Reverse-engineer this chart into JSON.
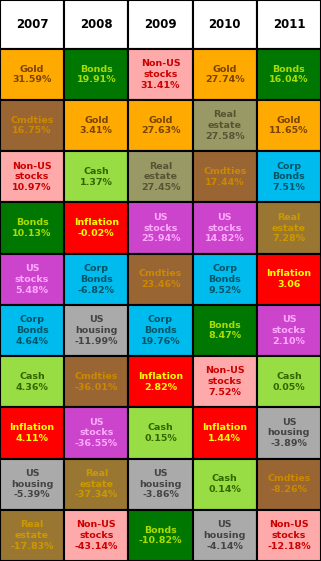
{
  "years": [
    "2007",
    "2008",
    "2009",
    "2010",
    "2011"
  ],
  "table": [
    [
      {
        "label": "Gold",
        "value": "31.59%",
        "bg": "#ffaa00",
        "fg": "#7a4400"
      },
      {
        "label": "Bonds",
        "value": "19.91%",
        "bg": "#007700",
        "fg": "#aadd00"
      },
      {
        "label": "Non-US\nstocks",
        "value": "31.41%",
        "bg": "#ffaaaa",
        "fg": "#cc0000"
      },
      {
        "label": "Gold",
        "value": "27.74%",
        "bg": "#ffaa00",
        "fg": "#7a4400"
      },
      {
        "label": "Bonds",
        "value": "16.04%",
        "bg": "#007700",
        "fg": "#aadd00"
      }
    ],
    [
      {
        "label": "Cmdties",
        "value": "16.75%",
        "bg": "#996633",
        "fg": "#cc8800"
      },
      {
        "label": "Gold",
        "value": "3.41%",
        "bg": "#ffaa00",
        "fg": "#7a4400"
      },
      {
        "label": "Gold",
        "value": "27.63%",
        "bg": "#ffaa00",
        "fg": "#7a4400"
      },
      {
        "label": "Real\nestate",
        "value": "27.58%",
        "bg": "#999966",
        "fg": "#555533"
      },
      {
        "label": "Gold",
        "value": "11.65%",
        "bg": "#ffaa00",
        "fg": "#7a4400"
      }
    ],
    [
      {
        "label": "Non-US\nstocks",
        "value": "10.97%",
        "bg": "#ffaaaa",
        "fg": "#cc0000"
      },
      {
        "label": "Cash",
        "value": "1.37%",
        "bg": "#99dd44",
        "fg": "#336600"
      },
      {
        "label": "Real\nestate",
        "value": "27.45%",
        "bg": "#999966",
        "fg": "#555533"
      },
      {
        "label": "Cmdties",
        "value": "17.44%",
        "bg": "#996633",
        "fg": "#cc8800"
      },
      {
        "label": "Corp\nBonds",
        "value": "7.51%",
        "bg": "#00bbee",
        "fg": "#005566"
      }
    ],
    [
      {
        "label": "Bonds",
        "value": "10.13%",
        "bg": "#007700",
        "fg": "#aadd00"
      },
      {
        "label": "Inflation",
        "value": "-0.02%",
        "bg": "#ff0000",
        "fg": "#ffff00"
      },
      {
        "label": "US\nstocks",
        "value": "25.94%",
        "bg": "#cc44cc",
        "fg": "#ffaaff"
      },
      {
        "label": "US\nstocks",
        "value": "14.82%",
        "bg": "#cc44cc",
        "fg": "#ffaaff"
      },
      {
        "label": "Real\nestate",
        "value": "7.28%",
        "bg": "#997733",
        "fg": "#cc9900"
      }
    ],
    [
      {
        "label": "US\nstocks",
        "value": "5.48%",
        "bg": "#cc44cc",
        "fg": "#ffaaff"
      },
      {
        "label": "Corp\nBonds",
        "value": "-6.82%",
        "bg": "#00bbee",
        "fg": "#005566"
      },
      {
        "label": "Cmdties",
        "value": "23.46%",
        "bg": "#996633",
        "fg": "#cc8800"
      },
      {
        "label": "Corp\nBonds",
        "value": "9.52%",
        "bg": "#00bbee",
        "fg": "#005566"
      },
      {
        "label": "Inflation",
        "value": "3.06",
        "bg": "#ff0000",
        "fg": "#ffff00"
      }
    ],
    [
      {
        "label": "Corp\nBonds",
        "value": "4.64%",
        "bg": "#00bbee",
        "fg": "#005566"
      },
      {
        "label": "US\nhousing",
        "value": "-11.99%",
        "bg": "#aaaaaa",
        "fg": "#444444"
      },
      {
        "label": "Corp\nBonds",
        "value": "19.76%",
        "bg": "#00bbee",
        "fg": "#005566"
      },
      {
        "label": "Bonds",
        "value": "8.47%",
        "bg": "#007700",
        "fg": "#aadd00"
      },
      {
        "label": "US\nstocks",
        "value": "2.10%",
        "bg": "#cc44cc",
        "fg": "#ffaaff"
      }
    ],
    [
      {
        "label": "Cash",
        "value": "4.36%",
        "bg": "#99dd44",
        "fg": "#336600"
      },
      {
        "label": "Cmdties",
        "value": "-36.01%",
        "bg": "#996633",
        "fg": "#cc8800"
      },
      {
        "label": "Inflation",
        "value": "2.82%",
        "bg": "#ff0000",
        "fg": "#ffff00"
      },
      {
        "label": "Non-US\nstocks",
        "value": "7.52%",
        "bg": "#ffaaaa",
        "fg": "#cc0000"
      },
      {
        "label": "Cash",
        "value": "0.05%",
        "bg": "#99dd44",
        "fg": "#336600"
      }
    ],
    [
      {
        "label": "Inflation",
        "value": "4.11%",
        "bg": "#ff0000",
        "fg": "#ffff00"
      },
      {
        "label": "US\nstocks",
        "value": "-36.55%",
        "bg": "#cc44cc",
        "fg": "#ffaaff"
      },
      {
        "label": "Cash",
        "value": "0.15%",
        "bg": "#99dd44",
        "fg": "#336600"
      },
      {
        "label": "Inflation",
        "value": "1.44%",
        "bg": "#ff0000",
        "fg": "#ffff00"
      },
      {
        "label": "US\nhousing",
        "value": "-3.89%",
        "bg": "#aaaaaa",
        "fg": "#444444"
      }
    ],
    [
      {
        "label": "US\nhousing",
        "value": "-5.39%",
        "bg": "#aaaaaa",
        "fg": "#444444"
      },
      {
        "label": "Real\nestate",
        "value": "-37.34%",
        "bg": "#997733",
        "fg": "#cc9900"
      },
      {
        "label": "US\nhousing",
        "value": "-3.86%",
        "bg": "#aaaaaa",
        "fg": "#444444"
      },
      {
        "label": "Cash",
        "value": "0.14%",
        "bg": "#99dd44",
        "fg": "#336600"
      },
      {
        "label": "Cmdties",
        "value": "-8.26%",
        "bg": "#996633",
        "fg": "#cc8800"
      }
    ],
    [
      {
        "label": "Real\nestate",
        "value": "-17.83%",
        "bg": "#997733",
        "fg": "#cc9900"
      },
      {
        "label": "Non-US\nstocks",
        "value": "-43.14%",
        "bg": "#ffaaaa",
        "fg": "#cc0000"
      },
      {
        "label": "Bonds",
        "value": "-10.82%",
        "bg": "#007700",
        "fg": "#aadd00"
      },
      {
        "label": "US\nhousing",
        "value": "-4.14%",
        "bg": "#aaaaaa",
        "fg": "#444444"
      },
      {
        "label": "Non-US\nstocks",
        "value": "-12.18%",
        "bg": "#ffaaaa",
        "fg": "#cc0000"
      }
    ]
  ],
  "figw": 3.21,
  "figh": 5.61,
  "dpi": 100
}
